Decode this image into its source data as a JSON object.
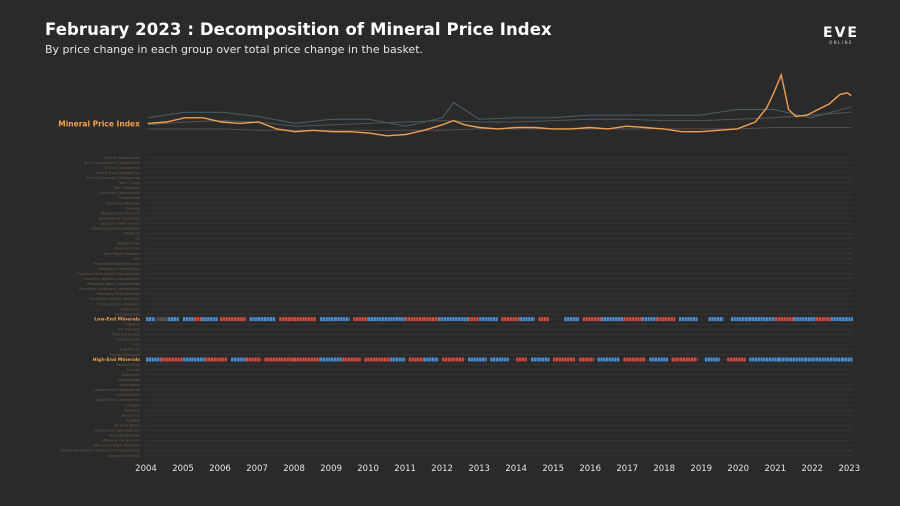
{
  "header": {
    "title": "February 2023 : Decomposition of Mineral Price Index",
    "subtitle": "By price change in each group over total price change in the basket."
  },
  "logo": {
    "main": "EVE",
    "sub": "ONLINE"
  },
  "colors": {
    "index_line": "#f0a050",
    "positive": "#4a90d9",
    "negative": "#d94a3a",
    "neutral": "#555a60",
    "grid": "#3a3a3a",
    "faint_line": "#4a5a58"
  },
  "chart_data": [
    {
      "type": "line",
      "title": "",
      "series": [
        {
          "name": "Mineral Price Index",
          "x": [
            2004.0,
            2004.5,
            2005.0,
            2005.5,
            2006.0,
            2006.5,
            2007.0,
            2007.5,
            2008.0,
            2008.5,
            2009.0,
            2009.5,
            2010.0,
            2010.5,
            2011.0,
            2011.5,
            2012.0,
            2012.3,
            2012.6,
            2013.0,
            2013.5,
            2014.0,
            2014.5,
            2015.0,
            2015.5,
            2016.0,
            2016.5,
            2017.0,
            2017.5,
            2018.0,
            2018.5,
            2019.0,
            2019.5,
            2020.0,
            2020.5,
            2020.8,
            2021.0,
            2021.2,
            2021.4,
            2021.6,
            2021.9,
            2022.2,
            2022.5,
            2022.8,
            2023.0,
            2023.1
          ],
          "y": [
            100,
            101,
            104,
            104,
            101,
            100,
            101,
            96,
            94,
            95,
            94,
            94,
            93,
            91,
            92,
            95,
            99,
            102,
            99,
            97,
            96,
            97,
            97,
            96,
            96,
            97,
            96,
            98,
            97,
            96,
            94,
            94,
            95,
            96,
            101,
            111,
            122,
            135,
            110,
            105,
            106,
            110,
            114,
            121,
            122,
            120
          ]
        }
      ],
      "faint_series": [
        {
          "x": [
            2004.0,
            2005.0,
            2006.0,
            2007.0,
            2008.0,
            2009.0,
            2010.0,
            2011.0,
            2012.0,
            2012.3,
            2013.0,
            2014.0,
            2015.0,
            2016.0,
            2017.0,
            2018.0,
            2019.0,
            2020.0,
            2021.0,
            2022.0,
            2023.1
          ],
          "y": [
            104,
            108,
            108,
            105,
            100,
            103,
            103,
            98,
            104,
            115,
            103,
            104,
            104,
            106,
            106,
            106,
            106,
            110,
            110,
            104,
            112
          ]
        },
        {
          "x": [
            2004.0,
            2005.0,
            2006.0,
            2007.0,
            2008.0,
            2009.0,
            2010.0,
            2011.0,
            2012.0,
            2013.0,
            2014.0,
            2015.0,
            2016.0,
            2017.0,
            2018.0,
            2019.0,
            2020.0,
            2021.0,
            2022.0,
            2023.1
          ],
          "y": [
            99,
            101,
            102,
            101,
            98,
            99,
            100,
            101,
            102,
            101,
            101,
            102,
            103,
            103,
            102,
            102,
            103,
            104,
            106,
            108
          ]
        },
        {
          "x": [
            2004.0,
            2005.0,
            2006.0,
            2007.0,
            2008.0,
            2009.0,
            2010.0,
            2011.0,
            2012.0,
            2013.0,
            2014.0,
            2015.0,
            2016.0,
            2017.0,
            2018.0,
            2019.0,
            2020.0,
            2021.0,
            2022.0,
            2023.1
          ],
          "y": [
            96,
            96,
            96,
            95,
            95,
            95,
            95,
            95,
            95,
            96,
            96,
            96,
            96,
            96,
            96,
            96,
            96,
            97,
            97,
            97
          ]
        }
      ],
      "xlim": [
        2003.95,
        2023.15
      ],
      "ylim": [
        88,
        140
      ]
    },
    {
      "type": "heatmap",
      "xlabel": "",
      "ylabel": "",
      "x_ticks": [
        "2004",
        "2005",
        "2006",
        "2007",
        "2008",
        "2009",
        "2010",
        "2011",
        "2012",
        "2013",
        "2014",
        "2015",
        "2016",
        "2017",
        "2018",
        "2019",
        "2020",
        "2021",
        "2022",
        "2023"
      ],
      "xlim": [
        2004,
        2023.1
      ],
      "rows": [
        {
          "name": "Tech III Components",
          "highlight": false
        },
        {
          "name": "Tech II Subsystem Components",
          "highlight": false
        },
        {
          "name": "Tech II Components",
          "highlight": false
        },
        {
          "name": "Tech II Ship Components",
          "highlight": false
        },
        {
          "name": "Tech II Advanced Components",
          "highlight": false
        },
        {
          "name": "Tech I Ships",
          "highlight": false
        },
        {
          "name": "Tech I Modules",
          "highlight": false
        },
        {
          "name": "Structure Components",
          "highlight": false
        },
        {
          "name": "Subsystems",
          "highlight": false
        },
        {
          "name": "Structure Modules",
          "highlight": false
        },
        {
          "name": "Salvage",
          "highlight": false
        },
        {
          "name": "Standard Ice Products",
          "highlight": false
        },
        {
          "name": "Sovereignty Structures",
          "highlight": false
        },
        {
          "name": "Special Edition Goods",
          "highlight": false
        },
        {
          "name": "Sovereignty Hub Upgrades",
          "highlight": false
        },
        {
          "name": "Research",
          "highlight": false
        },
        {
          "name": "Ice",
          "highlight": false
        },
        {
          "name": "Refined Ores",
          "highlight": false
        },
        {
          "name": "Reaction Ores",
          "highlight": false
        },
        {
          "name": "Raw Moon Materials",
          "highlight": false
        },
        {
          "name": "Ore",
          "highlight": false
        },
        {
          "name": "Processed Moon Materials",
          "highlight": false
        },
        {
          "name": "Planetary Commodities",
          "highlight": false
        },
        {
          "name": "Planetary Specialized Commodities",
          "highlight": false
        },
        {
          "name": "Planetary Refined Commodities",
          "highlight": false
        },
        {
          "name": "Planetary Basic Commodities",
          "highlight": false
        },
        {
          "name": "Planetary Advanced Commodities",
          "highlight": false
        },
        {
          "name": "Planetary Raw Materials",
          "highlight": false
        },
        {
          "name": "Planetary Industry Materials",
          "highlight": false
        },
        {
          "name": "Pirate Faction Materials",
          "highlight": false
        },
        {
          "name": "Moon Ores",
          "highlight": false
        },
        {
          "name": "Mutaplasmids",
          "highlight": false
        },
        {
          "name": "Low-End Minerals",
          "highlight": true
        },
        {
          "name": "Implants",
          "highlight": false
        },
        {
          "name": "Ice Products",
          "highlight": false
        },
        {
          "name": "Hybrid Charges",
          "highlight": false
        },
        {
          "name": "Harvestables",
          "highlight": false
        },
        {
          "name": "Gas",
          "highlight": false
        },
        {
          "name": "Fuel Blocks",
          "highlight": false
        },
        {
          "name": "Faction Materials",
          "highlight": false
        },
        {
          "name": "High-End Minerals",
          "highlight": true
        },
        {
          "name": "Faction Ships",
          "highlight": false
        },
        {
          "name": "Drones",
          "highlight": false
        },
        {
          "name": "Datacores",
          "highlight": false
        },
        {
          "name": "Deployables",
          "highlight": false
        },
        {
          "name": "Decryptors",
          "highlight": false
        },
        {
          "name": "Construction Components",
          "highlight": false
        },
        {
          "name": "Commodities",
          "highlight": false
        },
        {
          "name": "Capital Ship Components",
          "highlight": false
        },
        {
          "name": "Charges",
          "highlight": false
        },
        {
          "name": "Boosters",
          "highlight": false
        },
        {
          "name": "Blueprints",
          "highlight": false
        },
        {
          "name": "Apparel",
          "highlight": false
        },
        {
          "name": "Ancient Relics",
          "highlight": false
        },
        {
          "name": "Ancient Salvage Materials",
          "highlight": false
        },
        {
          "name": "Abyssal Materials",
          "highlight": false
        },
        {
          "name": "Alloys & Compounds",
          "highlight": false
        },
        {
          "name": "Advanced Moon Materials",
          "highlight": false
        },
        {
          "name": "Advanced Capital Construction Components",
          "highlight": false
        },
        {
          "name": "Abyssal Filaments",
          "highlight": false
        }
      ],
      "strips": {
        "Low-End Minerals": [
          {
            "from": 2004.0,
            "to": 2004.25,
            "sign": "pos"
          },
          {
            "from": 2004.3,
            "to": 2004.6,
            "sign": "neu"
          },
          {
            "from": 2004.6,
            "to": 2004.9,
            "sign": "pos"
          },
          {
            "from": 2005.0,
            "to": 2005.3,
            "sign": "pos"
          },
          {
            "from": 2005.3,
            "to": 2005.5,
            "sign": "neg"
          },
          {
            "from": 2005.5,
            "to": 2005.95,
            "sign": "pos"
          },
          {
            "from": 2006.0,
            "to": 2006.7,
            "sign": "neg"
          },
          {
            "from": 2006.8,
            "to": 2007.2,
            "sign": "pos"
          },
          {
            "from": 2007.2,
            "to": 2007.5,
            "sign": "pos"
          },
          {
            "from": 2007.6,
            "to": 2008.0,
            "sign": "neg"
          },
          {
            "from": 2008.0,
            "to": 2008.6,
            "sign": "neg"
          },
          {
            "from": 2008.7,
            "to": 2009.1,
            "sign": "pos"
          },
          {
            "from": 2009.1,
            "to": 2009.5,
            "sign": "pos"
          },
          {
            "from": 2009.6,
            "to": 2010.0,
            "sign": "neg"
          },
          {
            "from": 2010.0,
            "to": 2010.6,
            "sign": "pos"
          },
          {
            "from": 2010.6,
            "to": 2011.0,
            "sign": "pos"
          },
          {
            "from": 2011.0,
            "to": 2011.5,
            "sign": "neg"
          },
          {
            "from": 2011.5,
            "to": 2011.9,
            "sign": "neg"
          },
          {
            "from": 2011.9,
            "to": 2012.7,
            "sign": "pos"
          },
          {
            "from": 2012.7,
            "to": 2013.0,
            "sign": "neg"
          },
          {
            "from": 2013.0,
            "to": 2013.5,
            "sign": "pos"
          },
          {
            "from": 2013.6,
            "to": 2014.1,
            "sign": "neg"
          },
          {
            "from": 2014.1,
            "to": 2014.5,
            "sign": "pos"
          },
          {
            "from": 2014.6,
            "to": 2014.9,
            "sign": "neg"
          },
          {
            "from": 2015.3,
            "to": 2015.7,
            "sign": "pos"
          },
          {
            "from": 2015.8,
            "to": 2016.3,
            "sign": "neg"
          },
          {
            "from": 2016.3,
            "to": 2016.9,
            "sign": "pos"
          },
          {
            "from": 2016.9,
            "to": 2017.4,
            "sign": "neg"
          },
          {
            "from": 2017.4,
            "to": 2017.8,
            "sign": "pos"
          },
          {
            "from": 2017.8,
            "to": 2018.3,
            "sign": "neg"
          },
          {
            "from": 2018.4,
            "to": 2018.9,
            "sign": "pos"
          },
          {
            "from": 2019.2,
            "to": 2019.6,
            "sign": "pos"
          },
          {
            "from": 2019.8,
            "to": 2020.3,
            "sign": "pos"
          },
          {
            "from": 2020.3,
            "to": 2021.0,
            "sign": "pos"
          },
          {
            "from": 2021.0,
            "to": 2021.5,
            "sign": "neg"
          },
          {
            "from": 2021.5,
            "to": 2022.1,
            "sign": "pos"
          },
          {
            "from": 2022.1,
            "to": 2022.5,
            "sign": "neg"
          },
          {
            "from": 2022.5,
            "to": 2022.9,
            "sign": "pos"
          },
          {
            "from": 2022.9,
            "to": 2023.1,
            "sign": "pos"
          }
        ],
        "High-End Minerals": [
          {
            "from": 2004.0,
            "to": 2004.4,
            "sign": "pos"
          },
          {
            "from": 2004.4,
            "to": 2005.0,
            "sign": "neg"
          },
          {
            "from": 2005.0,
            "to": 2005.6,
            "sign": "pos"
          },
          {
            "from": 2005.6,
            "to": 2006.2,
            "sign": "neg"
          },
          {
            "from": 2006.3,
            "to": 2006.7,
            "sign": "pos"
          },
          {
            "from": 2006.7,
            "to": 2007.1,
            "sign": "neg"
          },
          {
            "from": 2007.2,
            "to": 2008.0,
            "sign": "neg"
          },
          {
            "from": 2008.0,
            "to": 2008.7,
            "sign": "neg"
          },
          {
            "from": 2008.7,
            "to": 2009.3,
            "sign": "pos"
          },
          {
            "from": 2009.3,
            "to": 2009.8,
            "sign": "neg"
          },
          {
            "from": 2009.9,
            "to": 2010.6,
            "sign": "neg"
          },
          {
            "from": 2010.6,
            "to": 2011.0,
            "sign": "pos"
          },
          {
            "from": 2011.1,
            "to": 2011.5,
            "sign": "neg"
          },
          {
            "from": 2011.5,
            "to": 2011.9,
            "sign": "pos"
          },
          {
            "from": 2012.0,
            "to": 2012.6,
            "sign": "neg"
          },
          {
            "from": 2012.7,
            "to": 2013.2,
            "sign": "pos"
          },
          {
            "from": 2013.3,
            "to": 2013.8,
            "sign": "pos"
          },
          {
            "from": 2014.0,
            "to": 2014.3,
            "sign": "neg"
          },
          {
            "from": 2014.4,
            "to": 2014.9,
            "sign": "pos"
          },
          {
            "from": 2015.0,
            "to": 2015.6,
            "sign": "neg"
          },
          {
            "from": 2015.7,
            "to": 2016.1,
            "sign": "neg"
          },
          {
            "from": 2016.2,
            "to": 2016.8,
            "sign": "pos"
          },
          {
            "from": 2016.9,
            "to": 2017.5,
            "sign": "neg"
          },
          {
            "from": 2017.6,
            "to": 2018.1,
            "sign": "pos"
          },
          {
            "from": 2018.2,
            "to": 2018.9,
            "sign": "neg"
          },
          {
            "from": 2019.1,
            "to": 2019.5,
            "sign": "pos"
          },
          {
            "from": 2019.7,
            "to": 2020.2,
            "sign": "neg"
          },
          {
            "from": 2020.3,
            "to": 2021.1,
            "sign": "pos"
          },
          {
            "from": 2021.1,
            "to": 2021.8,
            "sign": "pos"
          },
          {
            "from": 2021.8,
            "to": 2022.4,
            "sign": "pos"
          },
          {
            "from": 2022.4,
            "to": 2022.8,
            "sign": "pos"
          },
          {
            "from": 2022.8,
            "to": 2023.1,
            "sign": "pos"
          }
        ]
      }
    }
  ]
}
